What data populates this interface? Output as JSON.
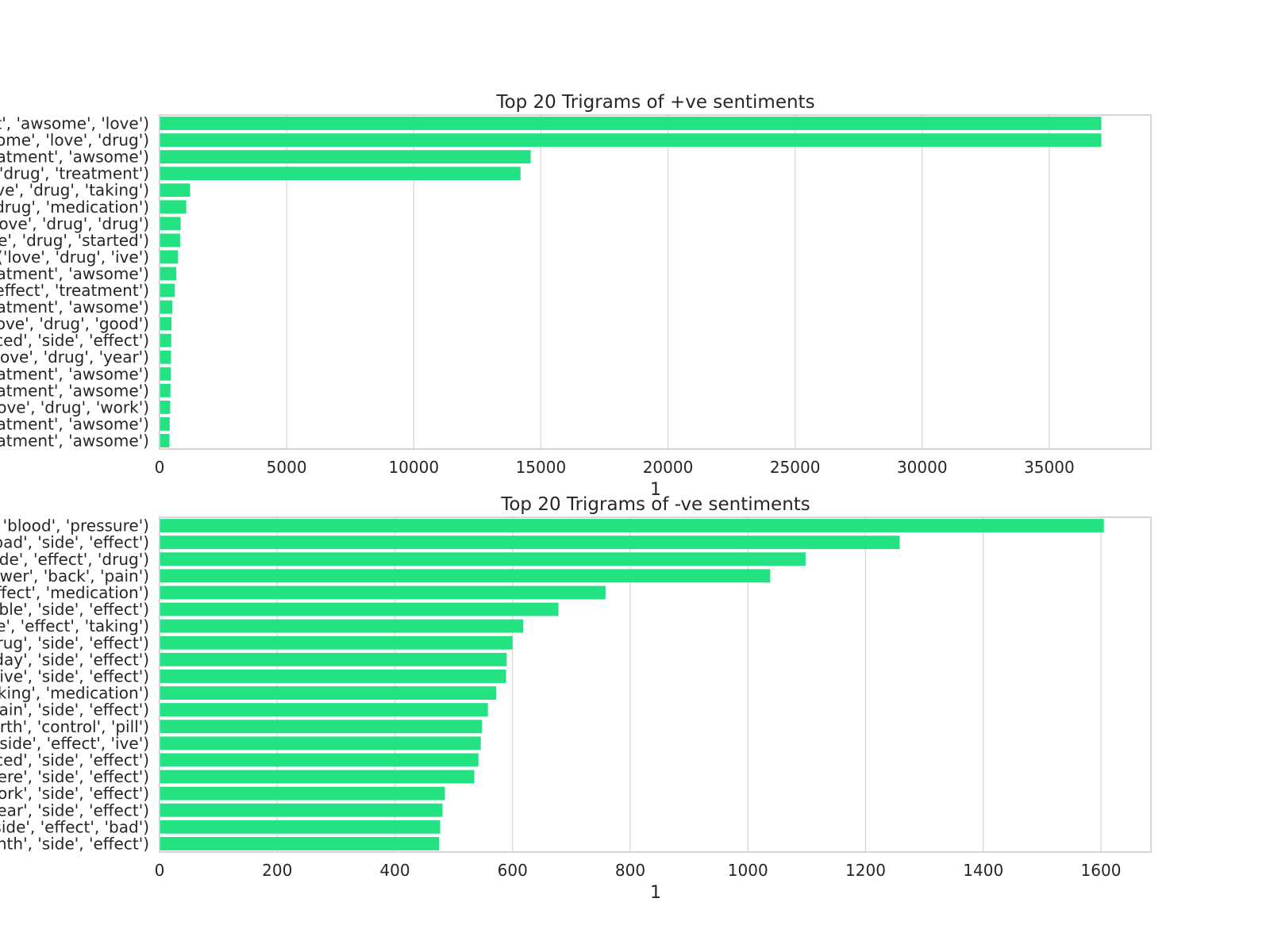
{
  "colors": {
    "bar": "#23e282",
    "grid": "#d9d9d9",
    "frame": "#cccccc",
    "text": "#262626"
  },
  "chart_data": [
    {
      "type": "bar",
      "orientation": "horizontal",
      "title": "Top 20 Trigrams of +ve sentiments",
      "xlabel": "1",
      "ylabel": "",
      "xlim": [
        0,
        39000
      ],
      "xticks": [
        0,
        5000,
        10000,
        15000,
        20000,
        25000,
        30000,
        35000
      ],
      "grid": true,
      "categories": [
        "t', 'awsome', 'love')",
        "ome', 'love', 'drug')",
        "atment', 'awsome')",
        "'drug', 'treatment')",
        "ve', 'drug', 'taking')",
        "drug', 'medication')",
        "love', 'drug', 'drug')",
        "e', 'drug', 'started')",
        "('love', 'drug', 'ive')",
        "atment', 'awsome')",
        "effect', 'treatment')",
        "atment', 'awsome')",
        "ove', 'drug', 'good')",
        "ced', 'side', 'effect')",
        "love', 'drug', 'year')",
        "atment', 'awsome')",
        "atment', 'awsome')",
        "ove', 'drug', 'work')",
        "atment', 'awsome')",
        "atment', 'awsome')"
      ],
      "values": [
        37050,
        37050,
        14600,
        14200,
        1200,
        1050,
        830,
        810,
        730,
        660,
        600,
        500,
        470,
        460,
        450,
        440,
        430,
        420,
        400,
        390
      ]
    },
    {
      "type": "bar",
      "orientation": "horizontal",
      "title": "Top 20 Trigrams of -ve sentiments",
      "xlabel": "1",
      "ylabel": "",
      "xlim": [
        0,
        1685
      ],
      "xticks": [
        0,
        200,
        400,
        600,
        800,
        1000,
        1200,
        1400,
        1600
      ],
      "grid": true,
      "categories": [
        "'blood', 'pressure')",
        "bad', 'side', 'effect')",
        "ide', 'effect', 'drug')",
        "wer', 'back', 'pain')",
        "ffect', 'medication')",
        "ible', 'side', 'effect')",
        "le', 'effect', 'taking')",
        "rug', 'side', 'effect')",
        "day', 'side', 'effect')",
        "tive', 'side', 'effect')",
        "king', 'medication')",
        "pain', 'side', 'effect')",
        "irth', 'control', 'pill')",
        "'side', 'effect', 'ive')",
        "ced', 'side', 'effect')",
        "ere', 'side', 'effect')",
        "ork', 'side', 'effect')",
        "ear', 'side', 'effect')",
        "side', 'effect', 'bad')",
        "nth', 'side', 'effect')"
      ],
      "values": [
        1605,
        1258,
        1098,
        1038,
        758,
        678,
        618,
        600,
        590,
        589,
        572,
        558,
        548,
        546,
        542,
        535,
        485,
        481,
        477,
        475
      ]
    }
  ]
}
